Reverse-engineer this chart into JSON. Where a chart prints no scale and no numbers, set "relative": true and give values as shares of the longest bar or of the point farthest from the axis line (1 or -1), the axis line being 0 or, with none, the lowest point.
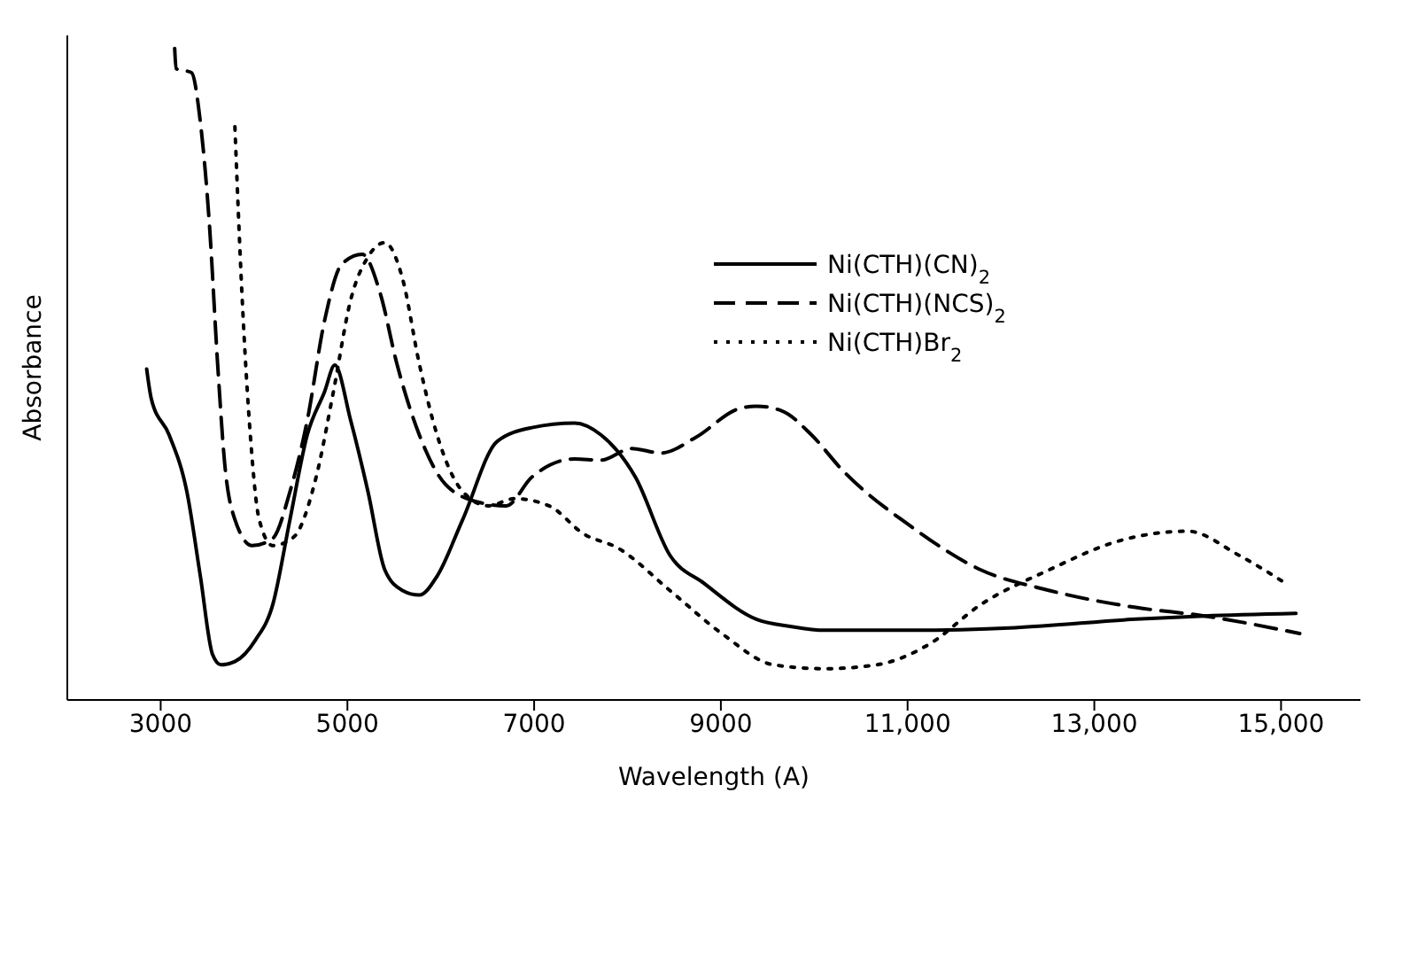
{
  "chart_data": {
    "type": "line",
    "xlabel": "Wavelength (A)",
    "ylabel": "Absorbance",
    "relative": true,
    "xlim": [
      2000,
      15850
    ],
    "xticks": [
      3000,
      5000,
      7000,
      9000,
      {
        "value": 11000,
        "label": "11,000"
      },
      {
        "value": 13000,
        "label": "13,000"
      },
      {
        "value": 15000,
        "label": "15,000"
      }
    ],
    "legend": "top right",
    "grid": false,
    "marker": "none",
    "series": [
      {
        "name": "Ni(CTH)(CN)$_{2}$",
        "color": "#000000",
        "line_style": "solid",
        "x": [
          2850,
          2900,
          3090,
          3280,
          3425,
          3555,
          3645,
          3795,
          4015,
          4200,
          4385,
          4570,
          4755,
          4865,
          5035,
          5220,
          5400,
          5590,
          5770,
          5960,
          6235,
          6605,
          6975,
          7435,
          7715,
          8085,
          8455,
          8820,
          9380,
          9745,
          10115,
          11040,
          12150,
          13445,
          14180,
          15160
        ],
        "values": [
          0.508,
          0.462,
          0.407,
          0.32,
          0.19,
          0.07,
          0.054,
          0.059,
          0.092,
          0.146,
          0.277,
          0.407,
          0.473,
          0.514,
          0.429,
          0.32,
          0.2,
          0.168,
          0.161,
          0.19,
          0.277,
          0.397,
          0.418,
          0.425,
          0.407,
          0.342,
          0.222,
          0.179,
          0.124,
          0.113,
          0.107,
          0.107,
          0.111,
          0.124,
          0.129,
          0.133
        ]
      },
      {
        "name": "Ni(CTH)(NCS)$_{2}$",
        "color": "#000000",
        "line_style": "dashed",
        "x": [
          3150,
          3165,
          3330,
          3425,
          3520,
          3610,
          3685,
          3795,
          3980,
          4200,
          4385,
          4570,
          4755,
          4940,
          5160,
          5350,
          5530,
          5770,
          6050,
          6420,
          6700,
          6975,
          7435,
          7715,
          8045,
          8360,
          8730,
          9190,
          9380,
          9650,
          9970,
          10300,
          11040,
          11780,
          12520,
          13445,
          14180,
          15200
        ],
        "values": [
          1,
          0.969,
          0.963,
          0.887,
          0.734,
          0.516,
          0.364,
          0.277,
          0.237,
          0.248,
          0.32,
          0.429,
          0.582,
          0.669,
          0.684,
          0.625,
          0.516,
          0.407,
          0.331,
          0.303,
          0.298,
          0.342,
          0.37,
          0.368,
          0.386,
          0.379,
          0.403,
          0.447,
          0.451,
          0.444,
          0.407,
          0.353,
          0.266,
          0.2,
          0.168,
          0.142,
          0.129,
          0.102
        ]
      },
      {
        "name": "Ni(CTH)Br$_{2}$",
        "color": "#000000",
        "line_style": "dotted",
        "x": [
          3795,
          3870,
          3960,
          4055,
          4200,
          4425,
          4665,
          4850,
          5035,
          5220,
          5400,
          5590,
          5770,
          5960,
          6235,
          6510,
          6790,
          7160,
          7530,
          7900,
          8455,
          9010,
          9565,
          10115,
          10670,
          11225,
          11780,
          12520,
          13260,
          14000,
          14550,
          15050
        ],
        "values": [
          0.88,
          0.625,
          0.407,
          0.277,
          0.237,
          0.25,
          0.342,
          0.473,
          0.614,
          0.68,
          0.702,
          0.647,
          0.516,
          0.407,
          0.32,
          0.298,
          0.309,
          0.298,
          0.255,
          0.233,
          0.168,
          0.102,
          0.054,
          0.048,
          0.054,
          0.085,
          0.146,
          0.2,
          0.244,
          0.259,
          0.222,
          0.179
        ]
      }
    ]
  }
}
